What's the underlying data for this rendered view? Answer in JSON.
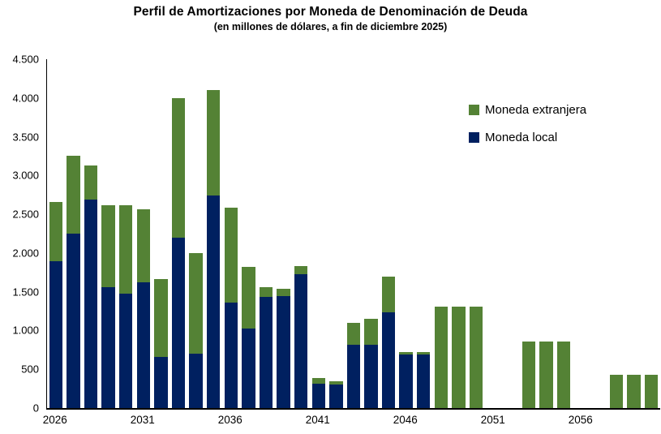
{
  "title": "Perfil de Amortizaciones por Moneda de Denominación de Deuda",
  "subtitle": "(en millones de dólares, a fin de diciembre 2025)",
  "colors": {
    "moneda_extranjera": "#548235",
    "moneda_local": "#002060",
    "axis": "#000000",
    "background": "#ffffff"
  },
  "legend": {
    "position": "upper right",
    "items": [
      {
        "label": "Moneda extranjera",
        "color": "#548235"
      },
      {
        "label": "Moneda local",
        "color": "#002060"
      }
    ]
  },
  "y_axis": {
    "min": 0,
    "max": 4500,
    "ticks": [
      {
        "label": "4.500",
        "value": 4500
      },
      {
        "label": "4.000",
        "value": 4000
      },
      {
        "label": "3.500",
        "value": 3500
      },
      {
        "label": "3.000",
        "value": 3000
      },
      {
        "label": "2.500",
        "value": 2500
      },
      {
        "label": "2.000",
        "value": 2000
      },
      {
        "label": "1.500",
        "value": 1500
      },
      {
        "label": "1.000",
        "value": 1000
      },
      {
        "label": "500",
        "value": 500
      },
      {
        "label": "0",
        "value": 0
      }
    ]
  },
  "x_axis": {
    "ticks": [
      {
        "label": "2026",
        "year_index": 0
      },
      {
        "label": "2031",
        "year_index": 5
      },
      {
        "label": "2036",
        "year_index": 10
      },
      {
        "label": "2041",
        "year_index": 15
      },
      {
        "label": "2046",
        "year_index": 20
      },
      {
        "label": "2051",
        "year_index": 25
      },
      {
        "label": "2056",
        "year_index": 30
      }
    ]
  },
  "chart_data": {
    "type": "bar",
    "stacked": true,
    "title": "Perfil de Amortizaciones por Moneda de Denominación de Deuda",
    "subtitle": "(en millones de dólares, a fin de diciembre 2025)",
    "units": "millones de dólares",
    "x": [
      2026,
      2027,
      2028,
      2029,
      2030,
      2031,
      2032,
      2033,
      2034,
      2035,
      2036,
      2037,
      2038,
      2039,
      2040,
      2041,
      2042,
      2043,
      2044,
      2045,
      2046,
      2047,
      2048,
      2049,
      2050,
      2051,
      2052,
      2053,
      2054,
      2055,
      2056,
      2057,
      2058,
      2059,
      2060
    ],
    "series": [
      {
        "name": "Moneda local",
        "color": "#002060",
        "values": [
          1890,
          2250,
          2690,
          1560,
          1480,
          1620,
          660,
          2200,
          700,
          2740,
          1360,
          1030,
          1430,
          1440,
          1730,
          310,
          300,
          820,
          820,
          1240,
          690,
          690,
          0,
          0,
          0,
          0,
          0,
          0,
          0,
          0,
          0,
          0,
          0,
          0,
          0
        ]
      },
      {
        "name": "Moneda extranjera",
        "color": "#548235",
        "values": [
          770,
          1000,
          440,
          1060,
          1140,
          940,
          1000,
          1800,
          1300,
          1360,
          1220,
          790,
          130,
          100,
          100,
          80,
          50,
          280,
          330,
          460,
          30,
          30,
          1310,
          1310,
          1310,
          0,
          0,
          860,
          860,
          860,
          0,
          0,
          430,
          430,
          430
        ]
      }
    ],
    "ylim": [
      0,
      4500
    ],
    "xlabel": "",
    "ylabel": "",
    "grid": false,
    "legend_position": "upper right"
  }
}
